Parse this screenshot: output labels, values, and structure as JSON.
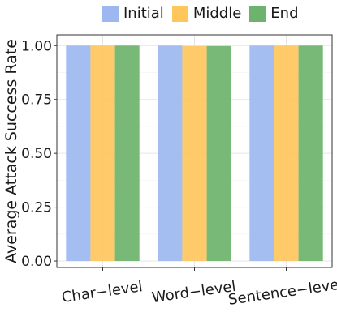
{
  "chart_data": {
    "type": "bar",
    "title": "",
    "xlabel": "",
    "ylabel": "Average Attack Success Rate",
    "categories": [
      "Char−level",
      "Word−level",
      "Sentence−level"
    ],
    "series": [
      {
        "name": "Initial",
        "values": [
          1.0,
          1.0,
          1.0
        ],
        "color": "#9db8f0"
      },
      {
        "name": "Middle",
        "values": [
          1.0,
          0.998,
          1.0
        ],
        "color": "#ffc65c"
      },
      {
        "name": "End",
        "values": [
          1.0,
          0.998,
          1.0
        ],
        "color": "#6db36d"
      }
    ],
    "ylim": [
      -0.03,
      1.05
    ],
    "yticks": [
      "0.00",
      "0.25",
      "0.50",
      "0.75",
      "1.00"
    ],
    "ytick_values": [
      0,
      0.25,
      0.5,
      0.75,
      1.0
    ],
    "grid": true,
    "legend_position": "top"
  }
}
